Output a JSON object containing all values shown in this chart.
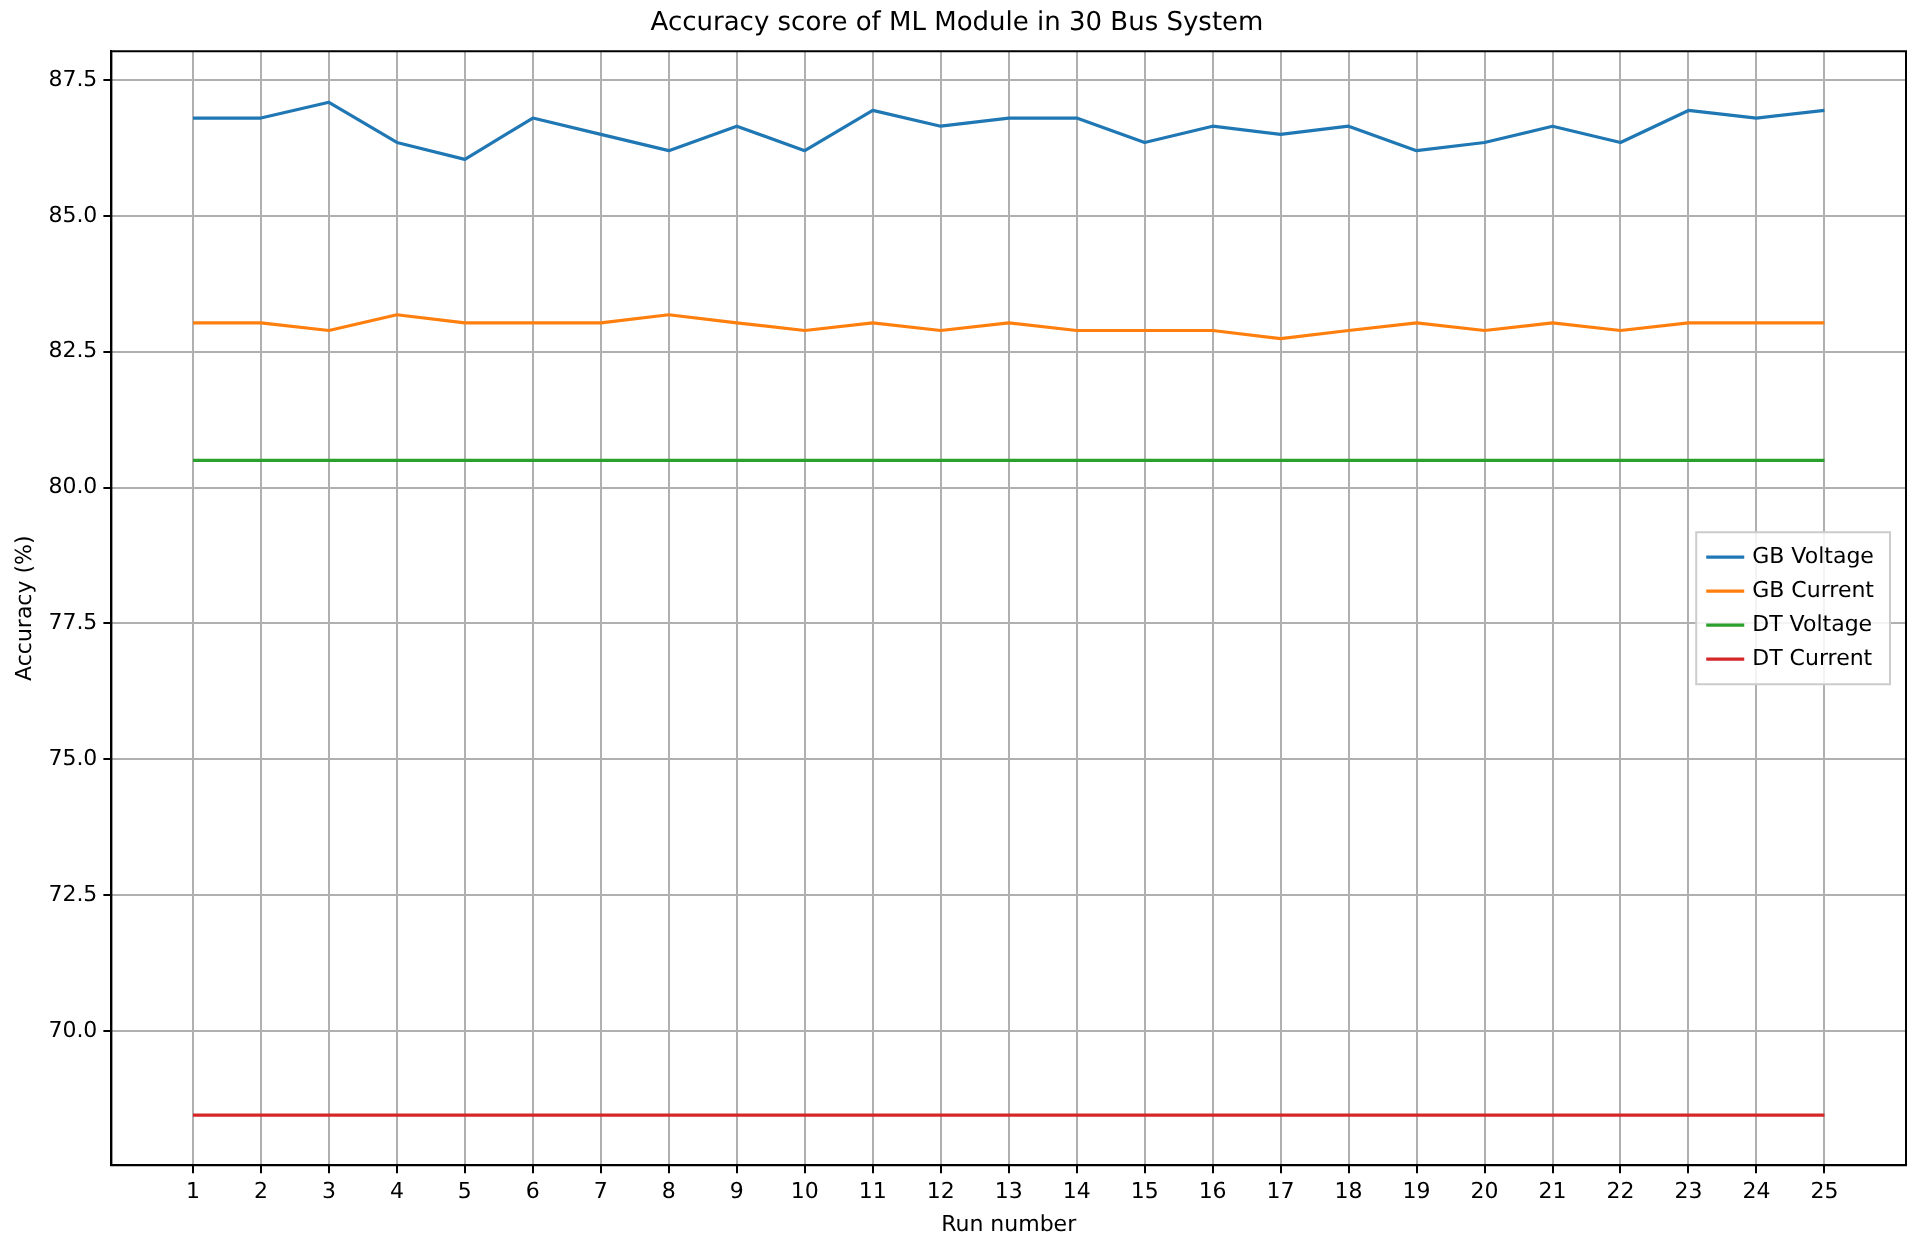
{
  "chart_data": {
    "type": "line",
    "title": "Accuracy score of ML Module in 30 Bus System",
    "xlabel": "Run number",
    "ylabel": "Accuracy (%)",
    "x": [
      1,
      2,
      3,
      4,
      5,
      6,
      7,
      8,
      9,
      10,
      11,
      12,
      13,
      14,
      15,
      16,
      17,
      18,
      19,
      20,
      21,
      22,
      23,
      24,
      25
    ],
    "series": [
      {
        "name": "GB Voltage",
        "color": "#1f77b4",
        "values": [
          86.8,
          86.8,
          87.09,
          86.35,
          86.04,
          86.8,
          86.5,
          86.2,
          86.65,
          86.2,
          86.94,
          86.65,
          86.8,
          86.8,
          86.35,
          86.65,
          86.5,
          86.65,
          86.2,
          86.35,
          86.65,
          86.35,
          86.94,
          86.8,
          86.94
        ]
      },
      {
        "name": "GB Current",
        "color": "#ff7f0e",
        "values": [
          83.03,
          83.03,
          82.89,
          83.18,
          83.03,
          83.03,
          83.03,
          83.18,
          83.03,
          82.89,
          83.03,
          82.89,
          83.03,
          82.89,
          82.89,
          82.89,
          82.74,
          82.89,
          83.03,
          82.89,
          83.03,
          82.89,
          83.03,
          83.03,
          83.03
        ]
      },
      {
        "name": "DT Voltage",
        "color": "#2ca02c",
        "values": [
          80.5,
          80.5,
          80.5,
          80.5,
          80.5,
          80.5,
          80.5,
          80.5,
          80.5,
          80.5,
          80.5,
          80.5,
          80.5,
          80.5,
          80.5,
          80.5,
          80.5,
          80.5,
          80.5,
          80.5,
          80.5,
          80.5,
          80.5,
          80.5,
          80.5
        ]
      },
      {
        "name": "DT Current",
        "color": "#d62728",
        "values": [
          68.45,
          68.45,
          68.45,
          68.45,
          68.45,
          68.45,
          68.45,
          68.45,
          68.45,
          68.45,
          68.45,
          68.45,
          68.45,
          68.45,
          68.45,
          68.45,
          68.45,
          68.45,
          68.45,
          68.45,
          68.45,
          68.45,
          68.45,
          68.45,
          68.45
        ]
      }
    ],
    "xlim": [
      -0.2,
      26.2
    ],
    "xticks": [
      1,
      2,
      3,
      4,
      5,
      6,
      7,
      8,
      9,
      10,
      11,
      12,
      13,
      14,
      15,
      16,
      17,
      18,
      19,
      20,
      21,
      22,
      23,
      24,
      25
    ],
    "ylim": [
      67.53,
      88.03
    ],
    "yticks": [
      {
        "value": 70,
        "label": "70.0"
      },
      {
        "value": 72.5,
        "label": "72.5"
      },
      {
        "value": 75,
        "label": "75.0"
      },
      {
        "value": 77.5,
        "label": "77.5"
      },
      {
        "value": 80,
        "label": "80.0"
      },
      {
        "value": 82.5,
        "label": "82.5"
      },
      {
        "value": 85,
        "label": "85.0"
      },
      {
        "value": 87.5,
        "label": "87.5"
      }
    ],
    "grid": true,
    "legend": "center right",
    "marker": "none",
    "line_style": "solid"
  }
}
